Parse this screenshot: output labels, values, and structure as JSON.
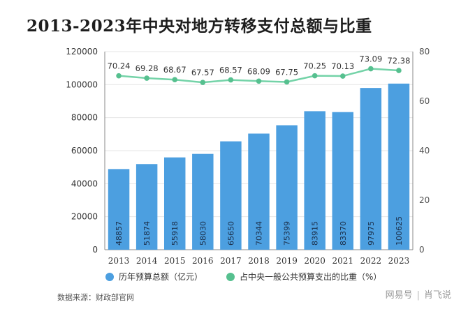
{
  "title": "2013-2023年中央对地方转移支付总额与比重",
  "source": "数据来源：财政部官网",
  "watermark": {
    "brand": "网易号",
    "separator": "|",
    "author": "肖飞说"
  },
  "colors": {
    "bar": "#4c9fe0",
    "bar_label": "#1b2f4a",
    "line": "#74d3a8",
    "line_marker": "#56c08f",
    "axis_text": "#333333",
    "right_axis_text": "#555555",
    "grid": "#e6e6e6"
  },
  "chart_data": {
    "type": "bar+line",
    "categories": [
      "2013",
      "2014",
      "2015",
      "2016",
      "2017",
      "2018",
      "2019",
      "2020",
      "2021",
      "2022",
      "2023"
    ],
    "series": [
      {
        "name": "历年预算总额（亿元）",
        "type": "bar",
        "axis": "left",
        "values": [
          48857,
          51874,
          55918,
          58030,
          65650,
          70344,
          75399,
          83915,
          83370,
          97975,
          100625
        ]
      },
      {
        "name": "占中央一般公共预算支出的比重（%）",
        "type": "line",
        "axis": "right",
        "values": [
          70.24,
          69.28,
          68.67,
          67.57,
          68.57,
          68.09,
          67.75,
          70.25,
          70.13,
          73.09,
          72.38
        ]
      }
    ],
    "y_left": {
      "min": 0,
      "max": 120000,
      "ticks": [
        0,
        20000,
        40000,
        60000,
        80000,
        100000,
        120000
      ]
    },
    "y_right": {
      "min": 0,
      "max": 80,
      "ticks": [
        0,
        20,
        40,
        60,
        80
      ]
    },
    "legend_position": "bottom",
    "grid": true
  }
}
